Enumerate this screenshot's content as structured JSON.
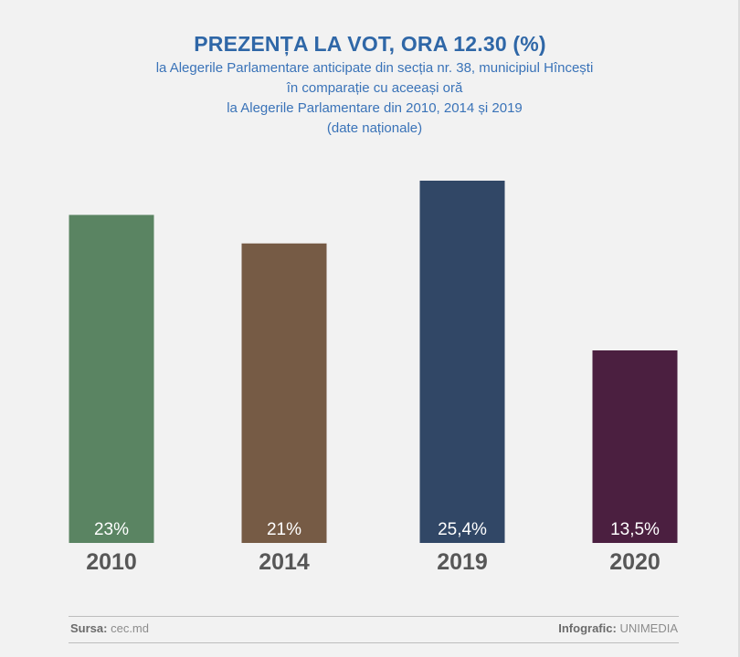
{
  "header": {
    "title": "PREZENȚA LA VOT, ORA 12.30 (%)",
    "subtitle_lines": [
      "la Alegerile Parlamentare anticipate din secția nr. 38, municipiul Hîncești",
      "în comparație cu aceeași oră",
      "la Alegerile Parlamentare din 2010, 2014 și 2019",
      "(date naționale)"
    ]
  },
  "chart_data": {
    "type": "bar",
    "categories": [
      "2010",
      "2014",
      "2019",
      "2020"
    ],
    "values": [
      23,
      21,
      25.4,
      13.5
    ],
    "data_labels": [
      "23%",
      "21%",
      "25,4%",
      "13,5%"
    ],
    "colors": [
      "#5a8462",
      "#765b45",
      "#314766",
      "#4b1f40"
    ],
    "title": "PREZENȚA LA VOT, ORA 12.30 (%)",
    "xlabel": "",
    "ylabel": "",
    "ylim": [
      0,
      25.4
    ],
    "grid": false,
    "legend": "none"
  },
  "footer": {
    "source_label": "Sursa:",
    "source_value": "cec.md",
    "credit_label": "Infografic:",
    "credit_value": "UNIMEDIA"
  }
}
